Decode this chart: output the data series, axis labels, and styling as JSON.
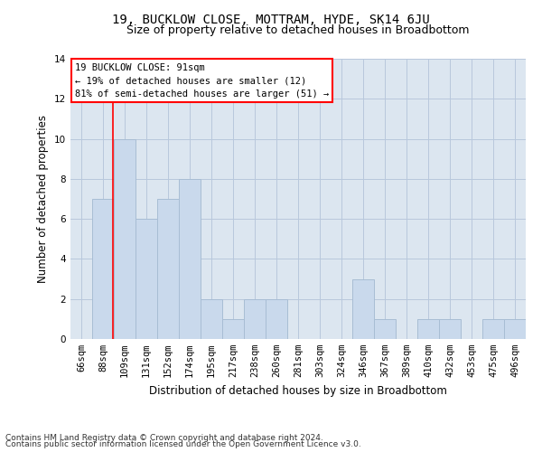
{
  "title": "19, BUCKLOW CLOSE, MOTTRAM, HYDE, SK14 6JU",
  "subtitle": "Size of property relative to detached houses in Broadbottom",
  "xlabel": "Distribution of detached houses by size in Broadbottom",
  "ylabel": "Number of detached properties",
  "categories": [
    "66sqm",
    "88sqm",
    "109sqm",
    "131sqm",
    "152sqm",
    "174sqm",
    "195sqm",
    "217sqm",
    "238sqm",
    "260sqm",
    "281sqm",
    "303sqm",
    "324sqm",
    "346sqm",
    "367sqm",
    "389sqm",
    "410sqm",
    "432sqm",
    "453sqm",
    "475sqm",
    "496sqm"
  ],
  "values": [
    0,
    7,
    10,
    6,
    7,
    8,
    2,
    1,
    2,
    2,
    0,
    0,
    0,
    3,
    1,
    0,
    1,
    1,
    0,
    1,
    1
  ],
  "bar_color": "#c9d9ec",
  "bar_edge_color": "#a8bdd4",
  "grid_color": "#b8c8dc",
  "bg_color": "#dce6f0",
  "red_line_x": 1.475,
  "annotation_line1": "19 BUCKLOW CLOSE: 91sqm",
  "annotation_line2": "← 19% of detached houses are smaller (12)",
  "annotation_line3": "81% of semi-detached houses are larger (51) →",
  "footer1": "Contains HM Land Registry data © Crown copyright and database right 2024.",
  "footer2": "Contains public sector information licensed under the Open Government Licence v3.0.",
  "ylim": [
    0,
    14
  ],
  "yticks": [
    0,
    2,
    4,
    6,
    8,
    10,
    12,
    14
  ],
  "title_fontsize": 10,
  "subtitle_fontsize": 9,
  "axis_label_fontsize": 8.5,
  "tick_fontsize": 7.5,
  "annotation_fontsize": 7.5,
  "footer_fontsize": 6.5
}
